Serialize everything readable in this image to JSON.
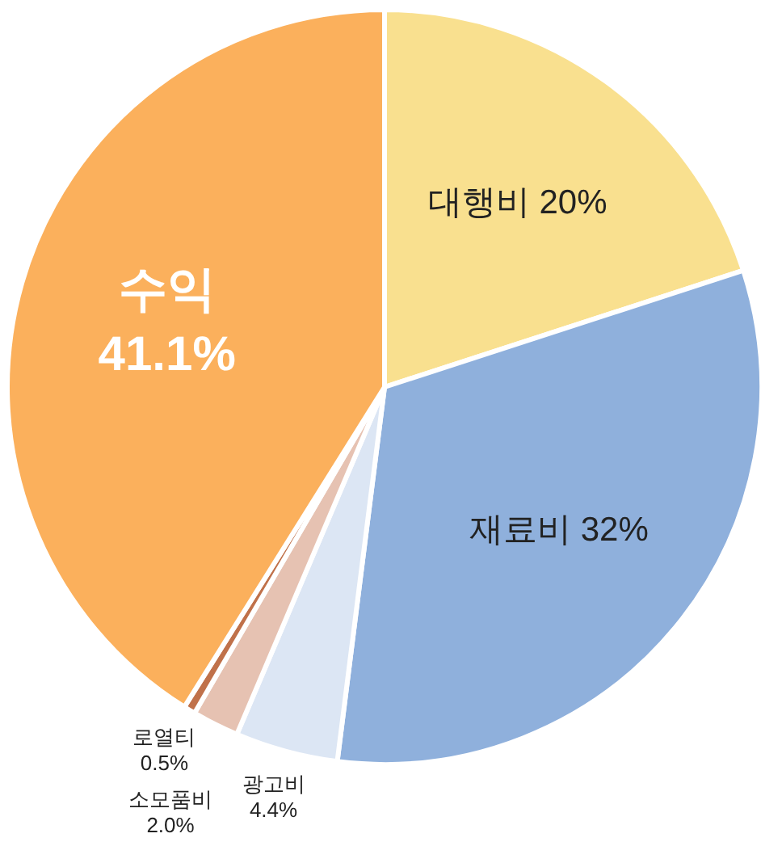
{
  "chart_data": {
    "type": "pie",
    "categories": [
      "대행비",
      "재료비",
      "광고비",
      "소모품비",
      "로열티",
      "수익"
    ],
    "values": [
      20,
      32,
      4.4,
      2.0,
      0.5,
      41.1
    ],
    "colors": [
      "#f9e08f",
      "#8fb0dc",
      "#dce6f4",
      "#e6c2b2",
      "#c0714a",
      "#fbb05c"
    ],
    "value_labels": [
      "20%",
      "32%",
      "4.4%",
      "2.0%",
      "0.5%",
      "41.1%"
    ],
    "legend": false
  }
}
